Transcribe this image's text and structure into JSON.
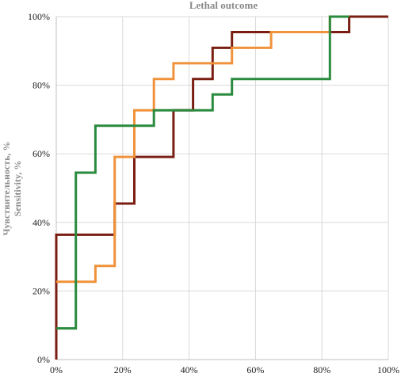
{
  "chart_data": {
    "type": "line",
    "step": true,
    "title": "Lethal outcome",
    "ylabel_line1": "Чувствительность, %",
    "ylabel_line2": "Sensitivity, %",
    "xlabel": "",
    "xlim": [
      0,
      100
    ],
    "ylim": [
      0,
      100
    ],
    "x_ticks": [
      0,
      20,
      40,
      60,
      80,
      100
    ],
    "y_ticks": [
      0,
      20,
      40,
      60,
      80,
      100
    ],
    "x_tick_labels": [
      "0%",
      "20%",
      "40%",
      "60%",
      "80%",
      "100%"
    ],
    "y_tick_labels": [
      "0%",
      "20%",
      "40%",
      "60%",
      "80%",
      "100%"
    ],
    "grid": true,
    "legend": "none",
    "series": [
      {
        "color": "#7a1e12",
        "points": [
          [
            0,
            0
          ],
          [
            0,
            36.4
          ],
          [
            17.6,
            36.4
          ],
          [
            17.6,
            45.5
          ],
          [
            23.5,
            45.5
          ],
          [
            23.5,
            59.1
          ],
          [
            35.3,
            59.1
          ],
          [
            35.3,
            72.7
          ],
          [
            41.2,
            72.7
          ],
          [
            41.2,
            81.8
          ],
          [
            47.1,
            81.8
          ],
          [
            47.1,
            90.9
          ],
          [
            52.9,
            90.9
          ],
          [
            52.9,
            95.5
          ],
          [
            88.2,
            95.5
          ],
          [
            88.2,
            100
          ],
          [
            100,
            100
          ]
        ]
      },
      {
        "color": "#f0923a",
        "points": [
          [
            0,
            22.7
          ],
          [
            11.8,
            22.7
          ],
          [
            11.8,
            27.3
          ],
          [
            17.6,
            27.3
          ],
          [
            17.6,
            59.1
          ],
          [
            23.5,
            59.1
          ],
          [
            23.5,
            72.7
          ],
          [
            29.4,
            72.7
          ],
          [
            29.4,
            81.8
          ],
          [
            35.3,
            81.8
          ],
          [
            35.3,
            86.4
          ],
          [
            52.9,
            86.4
          ],
          [
            52.9,
            90.9
          ],
          [
            64.7,
            90.9
          ],
          [
            64.7,
            95.5
          ],
          [
            82.4,
            95.5
          ],
          [
            82.4,
            100
          ],
          [
            88.2,
            100
          ]
        ]
      },
      {
        "color": "#2a8a3e",
        "points": [
          [
            0,
            9.1
          ],
          [
            5.9,
            9.1
          ],
          [
            5.9,
            54.5
          ],
          [
            11.8,
            54.5
          ],
          [
            11.8,
            68.2
          ],
          [
            29.4,
            68.2
          ],
          [
            29.4,
            72.7
          ],
          [
            47.1,
            72.7
          ],
          [
            47.1,
            77.3
          ],
          [
            52.9,
            77.3
          ],
          [
            52.9,
            81.8
          ],
          [
            82.4,
            81.8
          ],
          [
            82.4,
            100
          ],
          [
            88.2,
            100
          ]
        ]
      }
    ]
  }
}
